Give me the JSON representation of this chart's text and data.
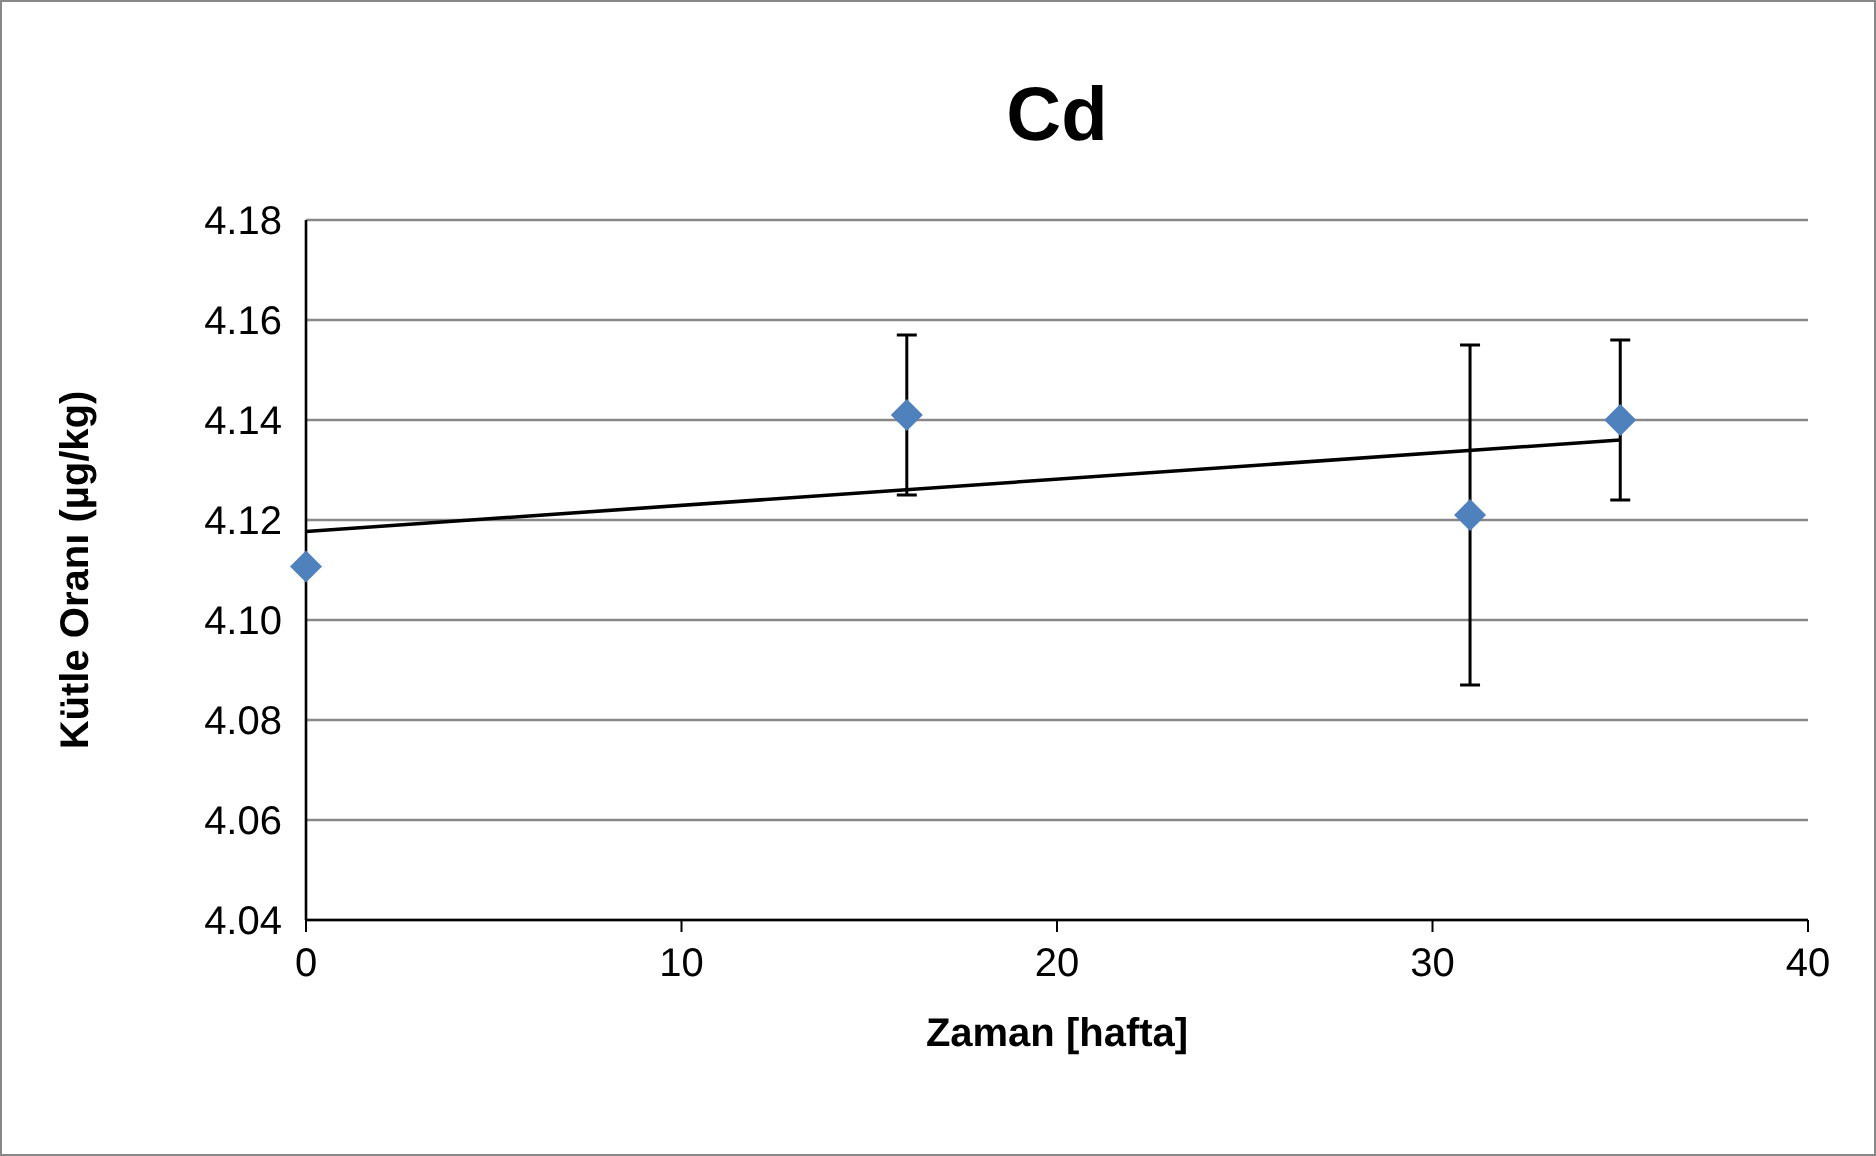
{
  "chart_data": {
    "type": "scatter",
    "title": "Cd",
    "xlabel": "Zaman [hafta]",
    "ylabel": "Kütle Oranı (µg/kg)",
    "xlim": [
      0,
      40
    ],
    "xticks": [
      0,
      10,
      20,
      30,
      40
    ],
    "ylim": [
      4.04,
      4.18
    ],
    "yticks": [
      4.04,
      4.06,
      4.08,
      {
        "value": 4.1,
        "label": "4.10"
      },
      4.12,
      4.14,
      4.16,
      4.18
    ],
    "grid": "y",
    "series": [
      {
        "color": "#4f81bd",
        "marker": "diamond",
        "x": [
          0,
          16,
          31,
          35
        ],
        "values": [
          4.1107,
          4.141,
          4.121,
          4.14
        ],
        "errors": [
          null,
          0.016,
          0.034,
          0.016
        ]
      },
      {
        "type": "line",
        "color": "#000000",
        "x": [
          0,
          35
        ],
        "values": [
          4.1177,
          4.136
        ]
      }
    ]
  }
}
